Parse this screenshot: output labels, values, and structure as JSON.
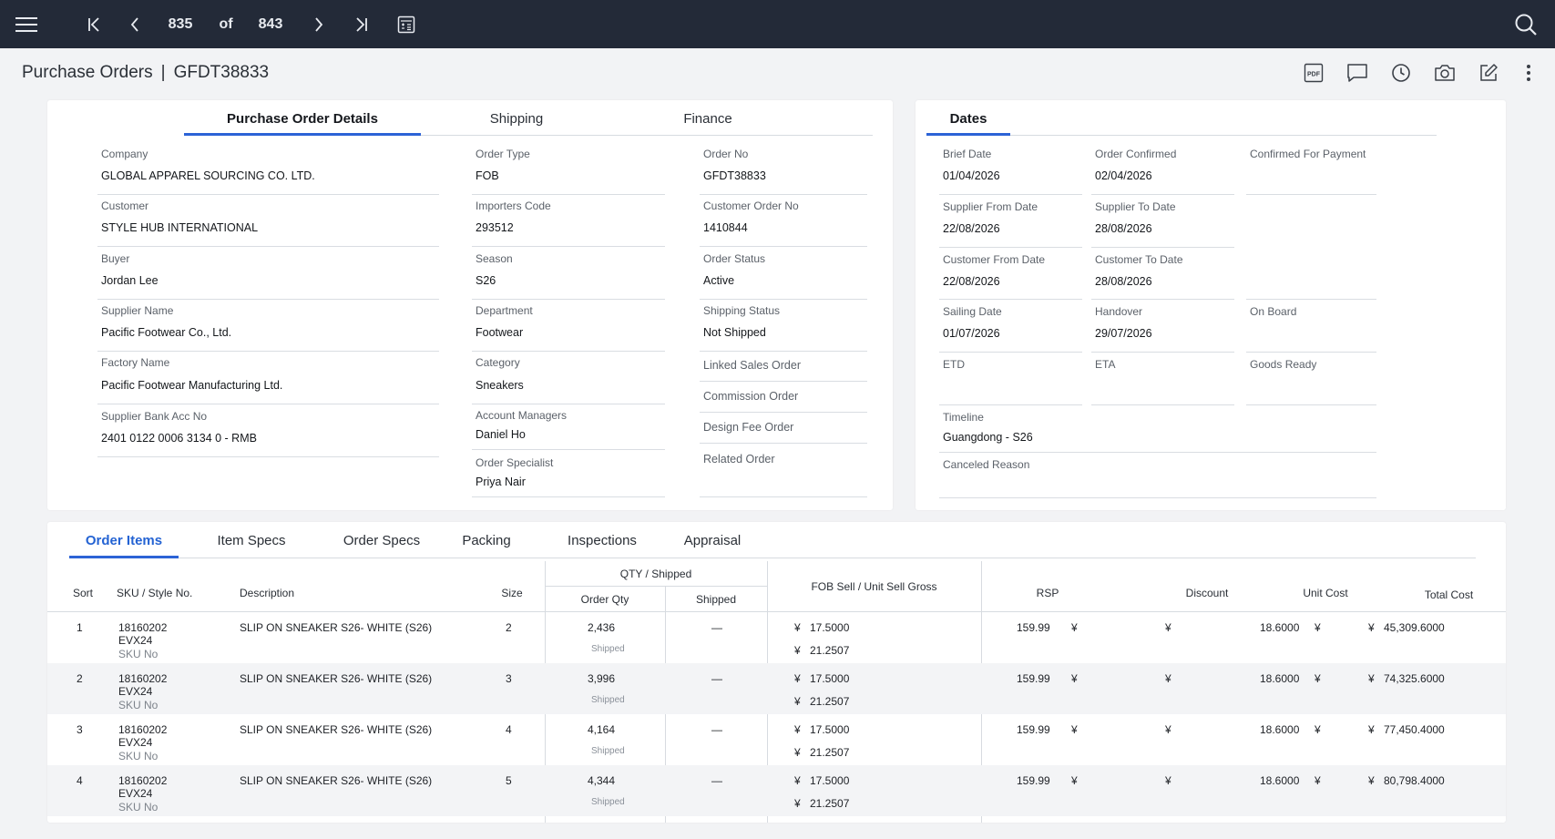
{
  "nav": {
    "current": "835",
    "of_label": "of",
    "total": "843"
  },
  "header": {
    "module": "Purchase Orders",
    "separator": "|",
    "record_id": "GFDT38833"
  },
  "main_tabs": [
    "Purchase Order Details",
    "Shipping",
    "Finance"
  ],
  "details": {
    "company_label": "Company",
    "company": "GLOBAL APPAREL SOURCING CO. LTD.",
    "customer_label": "Customer",
    "customer": "STYLE HUB INTERNATIONAL",
    "buyer_label": "Buyer",
    "buyer": "Jordan Lee",
    "supplier_label": "Supplier Name",
    "supplier": "Pacific Footwear Co., Ltd.",
    "factory_label": "Factory Name",
    "factory": "Pacific Footwear Manufacturing Ltd.",
    "bank_label": "Supplier Bank Acc No",
    "bank": "2401 0122 0006 3134 0 - RMB",
    "order_type_label": "Order Type",
    "order_type": "FOB",
    "importers_label": "Importers Code",
    "importers": "293512",
    "season_label": "Season",
    "season": "S26",
    "department_label": "Department",
    "department": "Footwear",
    "category_label": "Category",
    "category": "Sneakers",
    "acct_mgr_label": "Account Managers",
    "acct_mgr": "Daniel Ho",
    "specialist_label": "Order Specialist",
    "specialist": "Priya Nair",
    "order_no_label": "Order No",
    "order_no": "GFDT38833",
    "cust_order_label": "Customer Order No",
    "cust_order": "1410844",
    "status_label": "Order Status",
    "status": "Active",
    "ship_status_label": "Shipping Status",
    "ship_status": "Not Shipped",
    "linked_label": "Linked Sales Order",
    "commission_label": "Commission Order",
    "design_fee_label": "Design Fee Order",
    "related_label": "Related Order"
  },
  "dates": {
    "tab": "Dates",
    "brief_label": "Brief Date",
    "brief": "01/04/2026",
    "confirmed_label": "Order Confirmed",
    "confirmed": "02/04/2026",
    "payment_label": "Confirmed For Payment",
    "sup_from_label": "Supplier From Date",
    "sup_from": "22/08/2026",
    "sup_to_label": "Supplier To Date",
    "sup_to": "28/08/2026",
    "cust_from_label": "Customer From Date",
    "cust_from": "22/08/2026",
    "cust_to_label": "Customer To Date",
    "cust_to": "28/08/2026",
    "sailing_label": "Sailing Date",
    "sailing": "01/07/2026",
    "handover_label": "Handover",
    "handover": "29/07/2026",
    "onboard_label": "On Board",
    "etd_label": "ETD",
    "eta_label": "ETA",
    "goods_label": "Goods Ready",
    "timeline_label": "Timeline",
    "timeline": "Guangdong - S26",
    "canceled_label": "Canceled Reason"
  },
  "bottom_tabs": [
    "Order Items",
    "Item Specs",
    "Order Specs",
    "Packing",
    "Inspections",
    "Appraisal"
  ],
  "table": {
    "headers": {
      "sort": "Sort",
      "sku": "SKU / Style No.",
      "desc": "Description",
      "size": "Size",
      "qty_group": "QTY / Shipped",
      "order_qty": "Order Qty",
      "shipped": "Shipped",
      "fob": "FOB Sell / Unit Sell Gross",
      "rsp": "RSP",
      "discount": "Discount",
      "unit_cost": "Unit Cost",
      "total_cost": "Total Cost"
    },
    "rows": [
      {
        "sort": "1",
        "sku": "18160202",
        "sku2": "EVX24",
        "skuno": "SKU No",
        "desc": "SLIP ON SNEAKER S26- WHITE (S26)",
        "size": "2",
        "qty": "2,436",
        "qty_sub": "Shipped",
        "shipped": "—",
        "cur": "¥",
        "fob": "17.5000",
        "gross": "21.2507",
        "rsp": "159.99",
        "rsp_cur": "¥",
        "disc": "¥",
        "unit": "18.6000",
        "unit_cur": "¥",
        "total_cur": "¥",
        "total": "45,309.6000"
      },
      {
        "sort": "2",
        "sku": "18160202",
        "sku2": "EVX24",
        "skuno": "SKU No",
        "desc": "SLIP ON SNEAKER S26- WHITE (S26)",
        "size": "3",
        "qty": "3,996",
        "qty_sub": "Shipped",
        "shipped": "—",
        "cur": "¥",
        "fob": "17.5000",
        "gross": "21.2507",
        "rsp": "159.99",
        "rsp_cur": "¥",
        "disc": "¥",
        "unit": "18.6000",
        "unit_cur": "¥",
        "total_cur": "¥",
        "total": "74,325.6000"
      },
      {
        "sort": "3",
        "sku": "18160202",
        "sku2": "EVX24",
        "skuno": "SKU No",
        "desc": "SLIP ON SNEAKER S26- WHITE (S26)",
        "size": "4",
        "qty": "4,164",
        "qty_sub": "Shipped",
        "shipped": "—",
        "cur": "¥",
        "fob": "17.5000",
        "gross": "21.2507",
        "rsp": "159.99",
        "rsp_cur": "¥",
        "disc": "¥",
        "unit": "18.6000",
        "unit_cur": "¥",
        "total_cur": "¥",
        "total": "77,450.4000"
      },
      {
        "sort": "4",
        "sku": "18160202",
        "sku2": "EVX24",
        "skuno": "SKU No",
        "desc": "SLIP ON SNEAKER S26- WHITE (S26)",
        "size": "5",
        "qty": "4,344",
        "qty_sub": "Shipped",
        "shipped": "—",
        "cur": "¥",
        "fob": "17.5000",
        "gross": "21.2507",
        "rsp": "159.99",
        "rsp_cur": "¥",
        "disc": "¥",
        "unit": "18.6000",
        "unit_cur": "¥",
        "total_cur": "¥",
        "total": "80,798.4000"
      }
    ]
  },
  "icons": {
    "menu": "menu-icon",
    "first": "first-page-icon",
    "prev": "prev-icon",
    "next": "next-icon",
    "last": "last-page-icon",
    "calc": "calculator-icon",
    "search": "search-icon",
    "pdf": "pdf-icon",
    "comment": "comment-icon",
    "history": "clock-icon",
    "camera": "camera-icon",
    "edit": "edit-icon",
    "more": "more-icon"
  },
  "colors": {
    "topbar": "#232a38",
    "accent": "#2c63d6"
  }
}
